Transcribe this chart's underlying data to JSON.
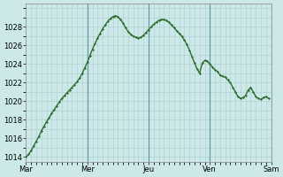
{
  "background_color": "#cce8e8",
  "line_color": "#2d6e2d",
  "marker": "D",
  "marker_size": 1.5,
  "line_width": 1.0,
  "ylim": [
    1013.5,
    1030.5
  ],
  "yticks": [
    1014,
    1016,
    1018,
    1020,
    1022,
    1024,
    1026,
    1028
  ],
  "xtick_labels": [
    "Mar",
    "Mer",
    "Jeu",
    "Ven",
    "Sam"
  ],
  "grid_color": "#aacccc",
  "major_vline_color": "#6699aa",
  "xlim": [
    0,
    96
  ],
  "vlines_x": [
    24,
    48,
    72,
    96
  ],
  "xtick_positions": [
    0,
    24,
    48,
    72,
    96
  ],
  "x_data": [
    0,
    1,
    2,
    3,
    4,
    5,
    6,
    7,
    8,
    9,
    10,
    11,
    12,
    13,
    14,
    15,
    16,
    17,
    18,
    19,
    20,
    21,
    22,
    23,
    24,
    25,
    26,
    27,
    28,
    29,
    30,
    31,
    32,
    33,
    34,
    35,
    36,
    37,
    38,
    39,
    40,
    41,
    42,
    43,
    44,
    45,
    46,
    47,
    48,
    49,
    50,
    51,
    52,
    53,
    54,
    55,
    56,
    57,
    58,
    59,
    60,
    61,
    62,
    63,
    64,
    65,
    66,
    67,
    68,
    69,
    70,
    71,
    72,
    73,
    74,
    75,
    76,
    77,
    78,
    79,
    80,
    81,
    82,
    83,
    84,
    85,
    86,
    87,
    88,
    89,
    90,
    91,
    92,
    93,
    94,
    95
  ],
  "y_data": [
    1014.0,
    1014.3,
    1014.7,
    1015.2,
    1015.7,
    1016.2,
    1016.8,
    1017.3,
    1017.8,
    1018.2,
    1018.7,
    1019.1,
    1019.5,
    1019.9,
    1020.3,
    1020.6,
    1020.9,
    1021.2,
    1021.5,
    1021.8,
    1022.1,
    1022.5,
    1023.0,
    1023.6,
    1024.2,
    1024.9,
    1025.6,
    1026.2,
    1026.8,
    1027.3,
    1027.8,
    1028.2,
    1028.6,
    1028.9,
    1029.1,
    1029.2,
    1029.1,
    1028.8,
    1028.4,
    1027.9,
    1027.5,
    1027.2,
    1027.0,
    1026.9,
    1026.8,
    1026.9,
    1027.1,
    1027.4,
    1027.7,
    1028.0,
    1028.3,
    1028.5,
    1028.7,
    1028.8,
    1028.8,
    1028.7,
    1028.5,
    1028.2,
    1027.9,
    1027.6,
    1027.3,
    1027.0,
    1026.6,
    1026.1,
    1025.5,
    1024.8,
    1024.1,
    1023.5,
    1023.0,
    1024.1,
    1024.4,
    1024.3,
    1024.0,
    1023.7,
    1023.4,
    1023.2,
    1022.8,
    1022.7,
    1022.6,
    1022.3,
    1022.0,
    1021.5,
    1021.0,
    1020.5,
    1020.3,
    1020.4,
    1020.6,
    1021.2,
    1021.5,
    1021.0,
    1020.5,
    1020.3,
    1020.2,
    1020.4,
    1020.5,
    1020.3
  ]
}
